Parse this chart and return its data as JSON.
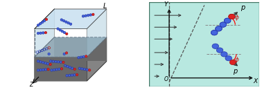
{
  "fig_width": 3.78,
  "fig_height": 1.3,
  "blue_fc": "#4466dd",
  "blue_ec": "#2233aa",
  "red_fc": "#dd2222",
  "red_ec": "#aa1111",
  "right_bg": "#b8e8e0",
  "left_top_bg": "#c8e0f0",
  "box_edge": "#333333",
  "box_bot": "#787878",
  "box_left": "#909090",
  "box_right": "#848484",
  "mid_plane": "#9ab8c8",
  "arrow_col": "#333333",
  "dash_col": "#666666",
  "ax_col": "#111111"
}
